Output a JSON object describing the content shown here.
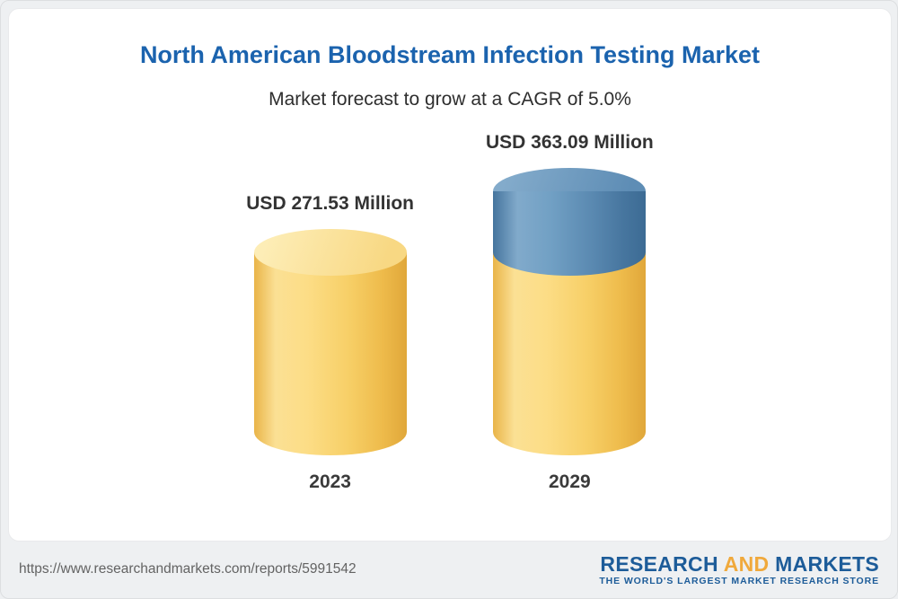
{
  "chart": {
    "title": "North American Bloodstream Infection Testing Market",
    "subtitle": "Market forecast to grow at a CAGR of 5.0%"
  },
  "chart_data": {
    "type": "bar",
    "variant": "3d-cylinder",
    "title": "North American Bloodstream Infection Testing Market",
    "subtitle": "Market forecast to grow at a CAGR of 5.0%",
    "unit": "USD Million",
    "cagr_percent": 5.0,
    "categories": [
      "2023",
      "2029"
    ],
    "values": [
      271.53,
      363.09
    ],
    "value_labels": [
      "USD 271.53 Million",
      "USD 363.09 Million"
    ],
    "series_note": "2029 bar shows 2023 base in yellow plus forecast growth segment in blue",
    "colors": {
      "base_segment": "#f7cf67",
      "growth_segment": "#5988b0"
    },
    "legend": "none",
    "grid": "off"
  },
  "footer": {
    "url": "https://www.researchandmarkets.com/reports/5991542",
    "logo": {
      "word1": "RESEARCH",
      "word2": "AND",
      "word3": "MARKETS",
      "tagline": "THE WORLD'S LARGEST MARKET RESEARCH STORE"
    }
  },
  "colors": {
    "title_blue": "#1b63ae",
    "text_dark": "#333333",
    "logo_blue": "#1d5c99",
    "logo_yellow": "#f0a93c",
    "page_background": "#eef0f2",
    "card_background": "#ffffff"
  }
}
